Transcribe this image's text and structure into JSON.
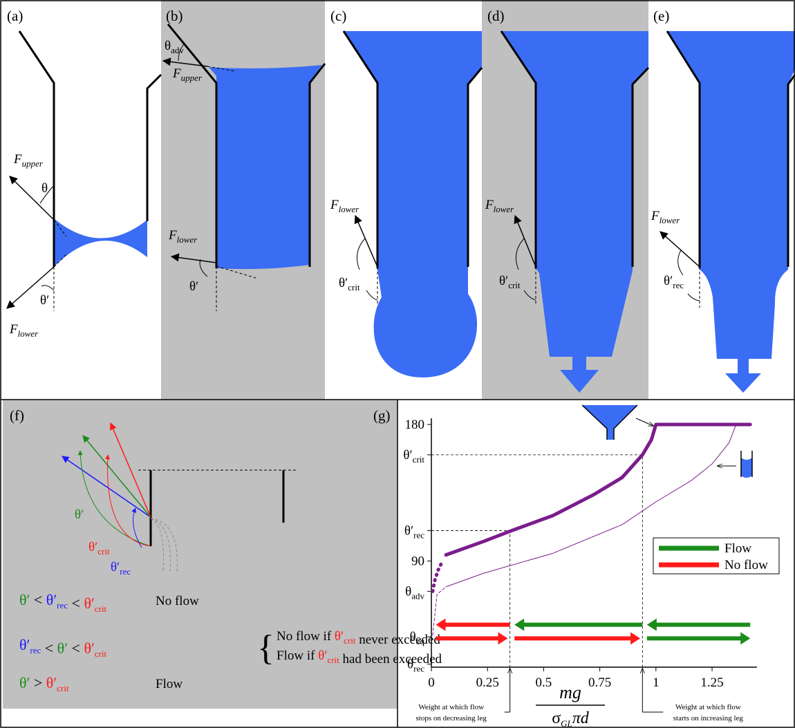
{
  "panels": {
    "a": {
      "label": "(a)",
      "upper_force": {
        "main": "F",
        "sub": "upper"
      },
      "theta": "θ",
      "lower_force": {
        "main": "F",
        "sub": "lower"
      },
      "theta_prime": "θ′"
    },
    "b": {
      "label": "(b)",
      "theta_adv": {
        "main": "θ",
        "sub": "adv"
      },
      "upper_force": {
        "main": "F",
        "sub": "upper"
      },
      "lower_force": {
        "main": "F",
        "sub": "lower"
      },
      "theta_prime": "θ′"
    },
    "c": {
      "label": "(c)",
      "lower_force": {
        "main": "F",
        "sub": "lower"
      },
      "angle": {
        "main": "θ′",
        "sub": "crit"
      }
    },
    "d": {
      "label": "(d)",
      "lower_force": {
        "main": "F",
        "sub": "lower"
      },
      "angle": {
        "main": "θ′",
        "sub": "crit"
      }
    },
    "e": {
      "label": "(e)",
      "lower_force": {
        "main": "F",
        "sub": "lower"
      },
      "angle": {
        "main": "θ′",
        "sub": "rec"
      }
    },
    "f": {
      "label": "(f)",
      "angle_labels": [
        {
          "main": "θ′",
          "color": "#1b8c1b"
        },
        {
          "main": "θ′",
          "sub": "crit",
          "color": "#ff1a1a"
        },
        {
          "main": "θ′",
          "sub": "rec",
          "color": "#1a1aff"
        }
      ],
      "conditions": [
        {
          "parts": [
            {
              "text": "θ′",
              "color": "#1b8c1b"
            },
            {
              "text": " < "
            },
            {
              "text": "θ′",
              "sub": "rec",
              "color": "#1a1aff"
            },
            {
              "text": " < "
            },
            {
              "text": "θ′",
              "sub": "crit",
              "color": "#ff1a1a"
            }
          ],
          "outcome": [
            [
              {
                "text": "No flow"
              }
            ]
          ]
        },
        {
          "parts": [
            {
              "text": "θ′",
              "sub": "rec",
              "color": "#1a1aff"
            },
            {
              "text": " < "
            },
            {
              "text": "θ′",
              "color": "#1b8c1b"
            },
            {
              "text": " < "
            },
            {
              "text": "θ′",
              "sub": "crit",
              "color": "#ff1a1a"
            }
          ],
          "outcome": [
            [
              {
                "text": "No flow if "
              },
              {
                "text": "θ′",
                "sub": "crit",
                "color": "#ff1a1a"
              },
              {
                "text": " never exceeded"
              }
            ],
            [
              {
                "text": "Flow if "
              },
              {
                "text": "θ′",
                "sub": "crit",
                "color": "#ff1a1a"
              },
              {
                "text": " had been exceeded"
              }
            ]
          ]
        },
        {
          "parts": [
            {
              "text": "θ′",
              "color": "#1b8c1b"
            },
            {
              "text": " > "
            },
            {
              "text": "θ′",
              "sub": "crit",
              "color": "#ff1a1a"
            }
          ],
          "outcome": [
            [
              {
                "text": "Flow"
              }
            ]
          ]
        }
      ]
    },
    "g": {
      "label": "(g)",
      "xlim": [
        0,
        1.45
      ],
      "ylim": [
        20,
        180
      ],
      "xticks": [
        0,
        0.25,
        0.5,
        0.75,
        1,
        1.25
      ],
      "yticks": [
        180,
        {
          "value": 160,
          "label": "θ′",
          "sub": "crit"
        },
        {
          "value": 110,
          "label": "θ′",
          "sub": "rec"
        },
        90,
        {
          "value": 70,
          "label": "θ",
          "sub": "adv"
        },
        {
          "value": 40,
          "label": "θ",
          "sub": "eq"
        },
        {
          "value": 22,
          "label": "θ",
          "sub": "rec"
        }
      ],
      "xlabel": {
        "numerator": "mg",
        "denominator": {
          "main": "σ",
          "sub": "GL",
          "rest": "πd"
        }
      },
      "series": [
        {
          "color": "#7b1c8c",
          "width": 5,
          "dash": "dotted",
          "x": [
            0.006,
            0.015,
            0.03,
            0.05
          ],
          "values": [
            70,
            77,
            84,
            90
          ]
        },
        {
          "color": "#7b1c8c",
          "width": 5,
          "dash": "solid",
          "x": [
            0.065,
            0.234,
            0.357,
            0.542,
            0.726,
            0.849,
            0.94,
            0.98,
            1.0,
            1.42
          ],
          "values": [
            94,
            103,
            110,
            120,
            134,
            145,
            160,
            170,
            180,
            180
          ]
        },
        {
          "color": "#7b1c8c",
          "width": 1,
          "dash": "dashed",
          "x": [
            0.006,
            0.025,
            0.065
          ],
          "values": [
            41,
            68,
            73
          ]
        },
        {
          "color": "#7b1c8c",
          "width": 1,
          "dash": "solid",
          "x": [
            0.065,
            0.234,
            0.54,
            0.85,
            1.0,
            1.157,
            1.25,
            1.326,
            1.357
          ],
          "values": [
            73,
            82,
            95,
            114,
            129,
            143,
            154,
            168,
            180
          ]
        }
      ],
      "guides": [
        {
          "x": 0.94,
          "y": 160
        },
        {
          "x": 0.35,
          "y": 110
        }
      ],
      "legend": [
        {
          "label": "Flow",
          "color": "#1b8c1b"
        },
        {
          "label": "No flow",
          "color": "#ff1a1a"
        }
      ],
      "arrows": [
        {
          "x": [
            0.35,
            0.02
          ],
          "y": 48,
          "legend": 1
        },
        {
          "x": [
            0.94,
            0.37
          ],
          "y": 48,
          "legend": 0
        },
        {
          "x": [
            1.42,
            0.96
          ],
          "y": 48,
          "legend": 0
        },
        {
          "x": [
            0.02,
            0.34
          ],
          "y": 39,
          "legend": 1
        },
        {
          "x": [
            0.37,
            0.93
          ],
          "y": 39,
          "legend": 1
        },
        {
          "x": [
            0.96,
            1.42
          ],
          "y": 39,
          "legend": 0
        }
      ],
      "annotations": [
        {
          "x": 0.35,
          "lines": [
            "Weight at which flow",
            "stops on decreasing leg"
          ]
        },
        {
          "x": 0.94,
          "lines": [
            "Weight at which flow",
            "starts on increasing leg"
          ]
        }
      ]
    }
  }
}
